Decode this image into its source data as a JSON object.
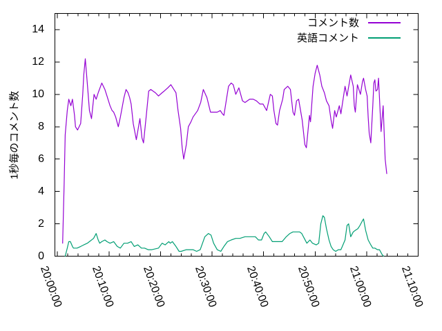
{
  "figure": {
    "background_color": "#ffffff",
    "axis_color": "#000000",
    "text_color": "#000000"
  },
  "chart_data": {
    "type": "line",
    "title": "",
    "xlabel": "",
    "ylabel": "1秒毎のコメント数",
    "grid": false,
    "legend_position": "top-right-inside",
    "x_unit": "minutes after 20:00:00",
    "xlim_minutes": [
      -0.5,
      70
    ],
    "ylim": [
      0,
      15
    ],
    "y_ticks": [
      0,
      2,
      4,
      6,
      8,
      10,
      12,
      14
    ],
    "x_major_ticks": [
      {
        "minutes": 0,
        "label": "20:00:00"
      },
      {
        "minutes": 10,
        "label": "20:10:00"
      },
      {
        "minutes": 20,
        "label": "20:20:00"
      },
      {
        "minutes": 30,
        "label": "20:30:00"
      },
      {
        "minutes": 40,
        "label": "20:40:00"
      },
      {
        "minutes": 50,
        "label": "20:50:00"
      },
      {
        "minutes": 60,
        "label": "21:00:00"
      },
      {
        "minutes": 70,
        "label": "21:10:00"
      }
    ],
    "x_minor_interval_minutes": 2,
    "series": [
      {
        "name": "コメント数",
        "color": "#9400d3",
        "points": [
          [
            1.0,
            0.8
          ],
          [
            1.3,
            4.5
          ],
          [
            1.5,
            7.5
          ],
          [
            1.9,
            9.0
          ],
          [
            2.2,
            9.7
          ],
          [
            2.6,
            9.3
          ],
          [
            2.9,
            9.7
          ],
          [
            3.3,
            8.7
          ],
          [
            3.5,
            8.0
          ],
          [
            3.9,
            7.8
          ],
          [
            4.5,
            8.2
          ],
          [
            4.9,
            10.0
          ],
          [
            5.1,
            11.2
          ],
          [
            5.4,
            12.2
          ],
          [
            5.7,
            11.0
          ],
          [
            5.9,
            10.2
          ],
          [
            6.2,
            9.0
          ],
          [
            6.6,
            8.5
          ],
          [
            7.1,
            10.0
          ],
          [
            7.5,
            9.7
          ],
          [
            7.9,
            10.1
          ],
          [
            8.6,
            10.7
          ],
          [
            9.2,
            10.3
          ],
          [
            9.6,
            9.9
          ],
          [
            10.2,
            9.3
          ],
          [
            10.6,
            9.0
          ],
          [
            10.9,
            8.9
          ],
          [
            11.3,
            8.6
          ],
          [
            11.8,
            8.0
          ],
          [
            12.2,
            8.6
          ],
          [
            12.9,
            9.8
          ],
          [
            13.3,
            10.3
          ],
          [
            13.7,
            10.1
          ],
          [
            14.0,
            9.8
          ],
          [
            14.3,
            9.4
          ],
          [
            14.7,
            8.2
          ],
          [
            15.3,
            7.2
          ],
          [
            16.0,
            8.5
          ],
          [
            16.4,
            7.3
          ],
          [
            16.7,
            7.0
          ],
          [
            17.2,
            8.6
          ],
          [
            17.7,
            10.2
          ],
          [
            18.1,
            10.3
          ],
          [
            19.0,
            10.1
          ],
          [
            19.6,
            9.9
          ],
          [
            20.3,
            10.1
          ],
          [
            20.7,
            10.2
          ],
          [
            21.4,
            10.4
          ],
          [
            22.0,
            10.6
          ],
          [
            22.6,
            10.3
          ],
          [
            23.0,
            10.1
          ],
          [
            23.4,
            9.0
          ],
          [
            23.9,
            7.9
          ],
          [
            24.2,
            6.7
          ],
          [
            24.5,
            6.0
          ],
          [
            25.0,
            6.9
          ],
          [
            25.4,
            8.0
          ],
          [
            25.9,
            8.3
          ],
          [
            26.3,
            8.6
          ],
          [
            27.2,
            9.0
          ],
          [
            27.8,
            9.5
          ],
          [
            28.3,
            10.3
          ],
          [
            29.0,
            9.8
          ],
          [
            29.7,
            8.9
          ],
          [
            30.4,
            8.9
          ],
          [
            31.0,
            8.9
          ],
          [
            31.6,
            9.0
          ],
          [
            32.0,
            8.8
          ],
          [
            32.3,
            8.7
          ],
          [
            33.2,
            10.5
          ],
          [
            33.7,
            10.7
          ],
          [
            34.1,
            10.6
          ],
          [
            34.6,
            10.0
          ],
          [
            35.2,
            10.4
          ],
          [
            35.9,
            9.6
          ],
          [
            36.4,
            9.5
          ],
          [
            37.3,
            9.7
          ],
          [
            38.0,
            9.7
          ],
          [
            38.6,
            9.6
          ],
          [
            39.3,
            9.4
          ],
          [
            39.9,
            9.4
          ],
          [
            40.6,
            9.0
          ],
          [
            41.3,
            10.0
          ],
          [
            41.7,
            9.9
          ],
          [
            42.0,
            9.0
          ],
          [
            42.4,
            8.2
          ],
          [
            42.7,
            8.1
          ],
          [
            43.1,
            9.0
          ],
          [
            43.7,
            9.7
          ],
          [
            44.0,
            10.3
          ],
          [
            44.7,
            10.5
          ],
          [
            45.2,
            10.3
          ],
          [
            45.7,
            8.9
          ],
          [
            46.0,
            8.7
          ],
          [
            46.4,
            9.6
          ],
          [
            46.8,
            9.7
          ],
          [
            47.5,
            8.4
          ],
          [
            48.0,
            6.9
          ],
          [
            48.3,
            6.7
          ],
          [
            48.9,
            8.7
          ],
          [
            49.1,
            8.3
          ],
          [
            49.6,
            10.5
          ],
          [
            50.0,
            11.3
          ],
          [
            50.4,
            11.8
          ],
          [
            50.9,
            11.2
          ],
          [
            51.3,
            10.5
          ],
          [
            51.8,
            10.1
          ],
          [
            52.2,
            9.6
          ],
          [
            52.7,
            9.3
          ],
          [
            53.1,
            8.4
          ],
          [
            53.4,
            7.9
          ],
          [
            53.8,
            9.0
          ],
          [
            54.1,
            8.6
          ],
          [
            54.7,
            9.3
          ],
          [
            55.0,
            8.8
          ],
          [
            55.8,
            10.5
          ],
          [
            56.2,
            9.9
          ],
          [
            56.9,
            11.2
          ],
          [
            57.4,
            10.5
          ],
          [
            57.6,
            9.3
          ],
          [
            57.8,
            8.9
          ],
          [
            58.2,
            10.6
          ],
          [
            58.5,
            10.3
          ],
          [
            58.8,
            10.0
          ],
          [
            59.2,
            10.8
          ],
          [
            59.4,
            11.0
          ],
          [
            59.8,
            10.3
          ],
          [
            60.1,
            9.9
          ],
          [
            60.3,
            8.6
          ],
          [
            60.5,
            7.6
          ],
          [
            60.8,
            7.0
          ],
          [
            61.2,
            9.3
          ],
          [
            61.4,
            10.7
          ],
          [
            61.6,
            10.9
          ],
          [
            61.8,
            10.2
          ],
          [
            62.1,
            10.3
          ],
          [
            62.3,
            11.0
          ],
          [
            62.8,
            7.7
          ],
          [
            63.2,
            9.3
          ],
          [
            63.6,
            6.0
          ],
          [
            63.9,
            5.1
          ]
        ]
      },
      {
        "name": "英語コメント",
        "color": "#009e73",
        "points": [
          [
            1.5,
            0.0
          ],
          [
            1.9,
            0.5
          ],
          [
            2.2,
            0.9
          ],
          [
            2.5,
            0.9
          ],
          [
            2.9,
            0.6
          ],
          [
            3.1,
            0.5
          ],
          [
            3.8,
            0.5
          ],
          [
            4.5,
            0.6
          ],
          [
            5.1,
            0.7
          ],
          [
            5.8,
            0.8
          ],
          [
            6.2,
            0.9
          ],
          [
            7.0,
            1.1
          ],
          [
            7.5,
            1.4
          ],
          [
            7.9,
            1.0
          ],
          [
            8.2,
            0.8
          ],
          [
            8.6,
            0.9
          ],
          [
            9.2,
            1.0
          ],
          [
            9.6,
            0.9
          ],
          [
            10.2,
            0.8
          ],
          [
            10.9,
            0.9
          ],
          [
            11.6,
            0.6
          ],
          [
            12.2,
            0.5
          ],
          [
            12.9,
            0.8
          ],
          [
            13.6,
            0.8
          ],
          [
            14.3,
            0.9
          ],
          [
            14.9,
            0.6
          ],
          [
            15.6,
            0.7
          ],
          [
            16.3,
            0.5
          ],
          [
            16.9,
            0.5
          ],
          [
            17.6,
            0.4
          ],
          [
            18.3,
            0.4
          ],
          [
            19.6,
            0.5
          ],
          [
            20.3,
            0.8
          ],
          [
            20.9,
            0.7
          ],
          [
            21.6,
            0.9
          ],
          [
            21.9,
            0.8
          ],
          [
            22.3,
            0.9
          ],
          [
            23.0,
            0.6
          ],
          [
            23.6,
            0.3
          ],
          [
            24.0,
            0.3
          ],
          [
            25.0,
            0.4
          ],
          [
            25.6,
            0.4
          ],
          [
            26.3,
            0.4
          ],
          [
            27.0,
            0.3
          ],
          [
            27.7,
            0.4
          ],
          [
            28.6,
            1.2
          ],
          [
            29.3,
            1.4
          ],
          [
            29.8,
            1.3
          ],
          [
            30.3,
            0.8
          ],
          [
            31.0,
            0.4
          ],
          [
            31.7,
            0.3
          ],
          [
            32.3,
            0.6
          ],
          [
            33.0,
            0.9
          ],
          [
            33.7,
            1.0
          ],
          [
            34.6,
            1.1
          ],
          [
            35.4,
            1.1
          ],
          [
            36.4,
            1.2
          ],
          [
            37.0,
            1.2
          ],
          [
            37.7,
            1.2
          ],
          [
            38.4,
            1.2
          ],
          [
            39.0,
            1.0
          ],
          [
            39.6,
            1.0
          ],
          [
            40.1,
            1.4
          ],
          [
            40.4,
            1.5
          ],
          [
            41.1,
            1.2
          ],
          [
            41.7,
            0.9
          ],
          [
            42.4,
            0.9
          ],
          [
            43.1,
            0.9
          ],
          [
            43.6,
            0.9
          ],
          [
            44.4,
            1.2
          ],
          [
            45.1,
            1.4
          ],
          [
            45.7,
            1.5
          ],
          [
            46.4,
            1.5
          ],
          [
            47.0,
            1.5
          ],
          [
            47.4,
            1.4
          ],
          [
            47.9,
            1.1
          ],
          [
            48.4,
            0.8
          ],
          [
            49.0,
            1.0
          ],
          [
            49.5,
            0.8
          ],
          [
            50.2,
            0.7
          ],
          [
            50.7,
            0.8
          ],
          [
            51.1,
            2.0
          ],
          [
            51.5,
            2.5
          ],
          [
            51.8,
            2.4
          ],
          [
            52.2,
            1.7
          ],
          [
            52.7,
            1.0
          ],
          [
            53.1,
            0.6
          ],
          [
            53.5,
            0.4
          ],
          [
            54.0,
            0.3
          ],
          [
            54.5,
            0.4
          ],
          [
            55.0,
            0.4
          ],
          [
            55.4,
            0.7
          ],
          [
            55.8,
            1.0
          ],
          [
            56.2,
            1.9
          ],
          [
            56.5,
            2.0
          ],
          [
            56.7,
            1.6
          ],
          [
            56.9,
            1.2
          ],
          [
            57.4,
            1.5
          ],
          [
            57.8,
            1.6
          ],
          [
            58.3,
            1.7
          ],
          [
            58.7,
            1.9
          ],
          [
            59.2,
            2.2
          ],
          [
            59.4,
            2.3
          ],
          [
            59.8,
            1.6
          ],
          [
            60.3,
            1.0
          ],
          [
            60.8,
            0.7
          ],
          [
            61.2,
            0.5
          ],
          [
            61.6,
            0.5
          ],
          [
            62.1,
            0.4
          ],
          [
            62.5,
            0.4
          ],
          [
            63.0,
            0.1
          ],
          [
            63.3,
            0.0
          ]
        ]
      }
    ]
  }
}
